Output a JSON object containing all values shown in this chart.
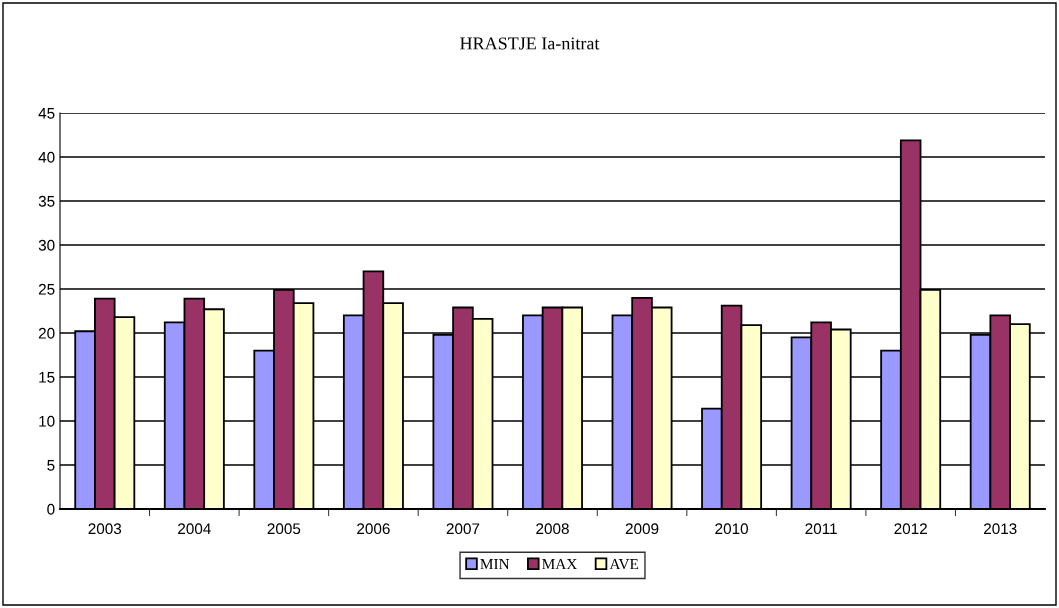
{
  "chart_data": {
    "type": "bar",
    "title": "HRASTJE Ia-nitrat",
    "categories": [
      "2003",
      "2004",
      "2005",
      "2006",
      "2007",
      "2008",
      "2009",
      "2010",
      "2011",
      "2012",
      "2013"
    ],
    "series": [
      {
        "name": "MIN",
        "color": "#9999ff",
        "values": [
          20.2,
          21.2,
          18.0,
          22.0,
          19.8,
          22.0,
          22.0,
          11.4,
          19.5,
          18.0,
          19.8
        ]
      },
      {
        "name": "MAX",
        "color": "#993366",
        "values": [
          23.9,
          23.9,
          24.9,
          27.0,
          22.9,
          22.9,
          24.0,
          23.1,
          21.2,
          41.9,
          22.0
        ]
      },
      {
        "name": "AVE",
        "color": "#ffffcc",
        "values": [
          21.8,
          22.7,
          23.4,
          23.4,
          21.6,
          22.9,
          22.9,
          20.9,
          20.4,
          24.9,
          21.0
        ]
      }
    ],
    "ylim": [
      0,
      45
    ],
    "yticks": [
      0,
      5,
      10,
      15,
      20,
      25,
      30,
      35,
      40,
      45
    ],
    "grid": "y",
    "legend": "bottom"
  }
}
